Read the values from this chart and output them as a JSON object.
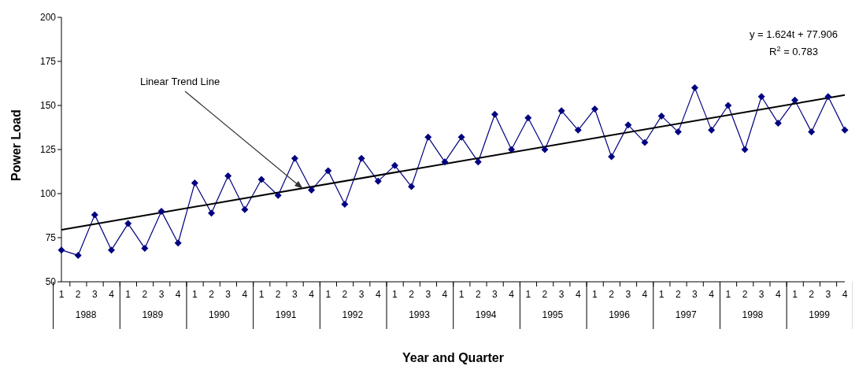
{
  "chart_data": {
    "type": "line",
    "xlabel": "Year and Quarter",
    "ylabel": "Power Load",
    "categories": [
      "1",
      "2",
      "3",
      "4",
      "1",
      "2",
      "3",
      "4",
      "1",
      "2",
      "3",
      "4",
      "1",
      "2",
      "3",
      "4",
      "1",
      "2",
      "3",
      "4",
      "1",
      "2",
      "3",
      "4",
      "1",
      "2",
      "3",
      "4",
      "1",
      "2",
      "3",
      "4",
      "1",
      "2",
      "3",
      "4",
      "1",
      "2",
      "3",
      "4",
      "1",
      "2",
      "3",
      "4",
      "1",
      "2",
      "3",
      "4"
    ],
    "series": [
      {
        "color": "#000080",
        "marker": "diamond",
        "values": [
          68,
          65,
          88,
          68,
          83,
          69,
          90,
          72,
          106,
          89,
          110,
          91,
          108,
          99,
          120,
          102,
          113,
          94,
          120,
          107,
          116,
          104,
          132,
          118,
          132,
          118,
          145,
          125,
          143,
          125,
          147,
          136,
          148,
          121,
          139,
          129,
          144,
          135,
          160,
          136,
          150,
          125,
          155,
          140,
          153,
          135,
          155,
          136
        ]
      },
      {
        "type": "line",
        "name": "Linear Trend Line",
        "color": "#000000",
        "marker": "none",
        "values": [
          79.5,
          null,
          null,
          null,
          null,
          null,
          null,
          null,
          null,
          null,
          null,
          null,
          null,
          null,
          null,
          null,
          null,
          null,
          null,
          null,
          null,
          null,
          null,
          null,
          null,
          null,
          null,
          null,
          null,
          null,
          null,
          null,
          null,
          null,
          null,
          null,
          null,
          null,
          null,
          null,
          null,
          null,
          null,
          null,
          null,
          null,
          null,
          155.9
        ]
      }
    ],
    "ylim": [
      50,
      200
    ],
    "yticks": [
      50,
      75,
      100,
      125,
      150,
      175,
      200
    ],
    "grid": false,
    "annotations": [
      "y = 1.624t + 77.906",
      "R$^{2}$ = 0.783",
      "1988",
      "1989",
      "1990",
      "1991",
      "1992",
      "1993",
      "1994",
      "1995",
      "1996",
      "1997",
      "1998",
      "1999"
    ]
  }
}
